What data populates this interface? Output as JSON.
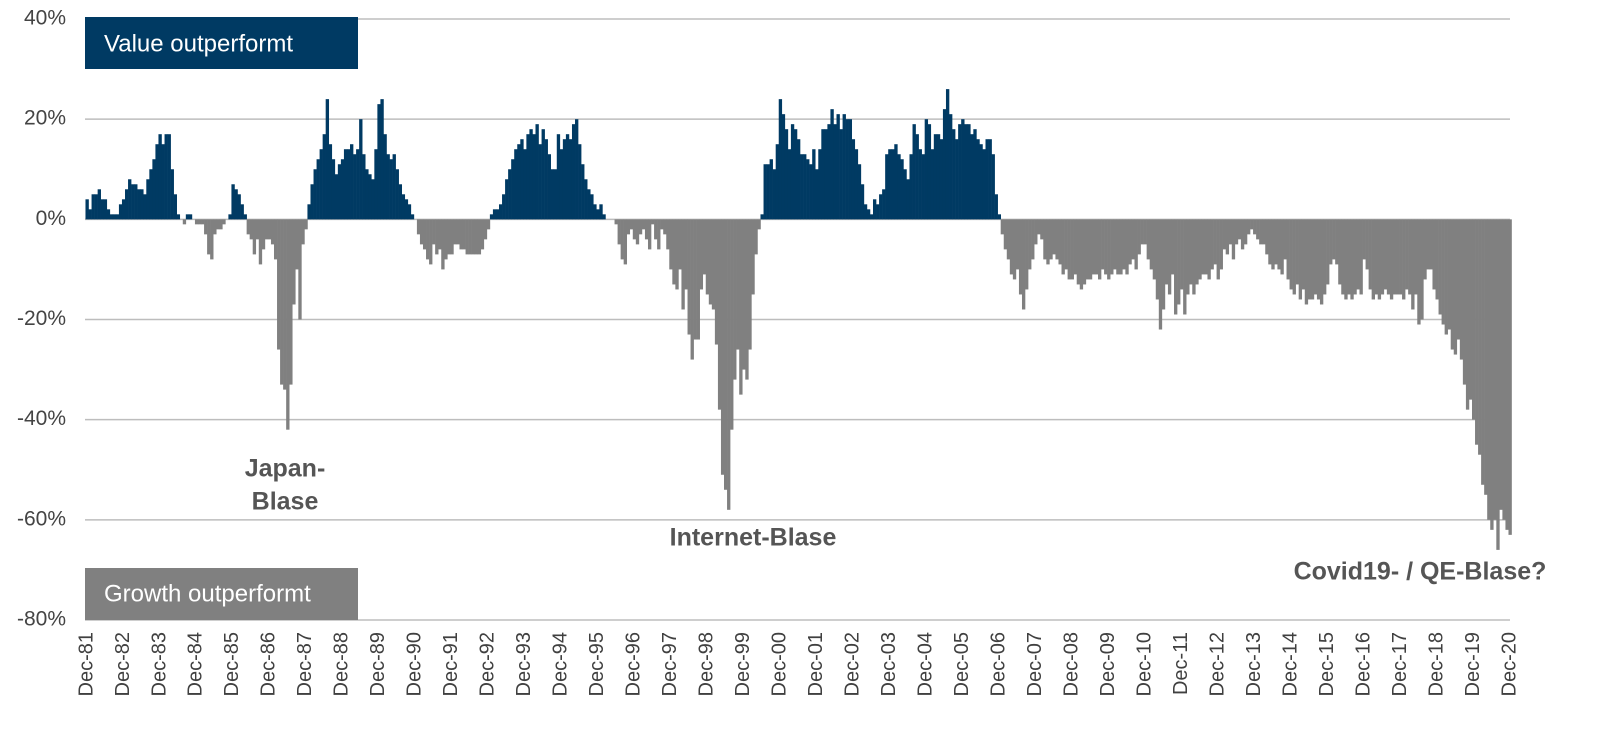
{
  "chart_data": {
    "type": "bar",
    "categories": [
      "Dec-81",
      null,
      null,
      null,
      null,
      null,
      null,
      null,
      null,
      null,
      null,
      null,
      "Dec-82",
      null,
      null,
      null,
      null,
      null,
      null,
      null,
      null,
      null,
      null,
      null,
      "Dec-83",
      null,
      null,
      null,
      null,
      null,
      null,
      null,
      null,
      null,
      null,
      null,
      "Dec-84",
      null,
      null,
      null,
      null,
      null,
      null,
      null,
      null,
      null,
      null,
      null,
      "Dec-85",
      null,
      null,
      null,
      null,
      null,
      null,
      null,
      null,
      null,
      null,
      null,
      "Dec-86",
      null,
      null,
      null,
      null,
      null,
      null,
      null,
      null,
      null,
      null,
      null,
      "Dec-87",
      null,
      null,
      null,
      null,
      null,
      null,
      null,
      null,
      null,
      null,
      null,
      "Dec-88",
      null,
      null,
      null,
      null,
      null,
      null,
      null,
      null,
      null,
      null,
      null,
      "Dec-89",
      null,
      null,
      null,
      null,
      null,
      null,
      null,
      null,
      null,
      null,
      null,
      "Dec-90",
      null,
      null,
      null,
      null,
      null,
      null,
      null,
      null,
      null,
      null,
      null,
      "Dec-91",
      null,
      null,
      null,
      null,
      null,
      null,
      null,
      null,
      null,
      null,
      null,
      "Dec-92",
      null,
      null,
      null,
      null,
      null,
      null,
      null,
      null,
      null,
      null,
      null,
      "Dec-93",
      null,
      null,
      null,
      null,
      null,
      null,
      null,
      null,
      null,
      null,
      null,
      "Dec-94",
      null,
      null,
      null,
      null,
      null,
      null,
      null,
      null,
      null,
      null,
      null,
      "Dec-95",
      null,
      null,
      null,
      null,
      null,
      null,
      null,
      null,
      null,
      null,
      null,
      "Dec-96",
      null,
      null,
      null,
      null,
      null,
      null,
      null,
      null,
      null,
      null,
      null,
      "Dec-97",
      null,
      null,
      null,
      null,
      null,
      null,
      null,
      null,
      null,
      null,
      null,
      "Dec-98",
      null,
      null,
      null,
      null,
      null,
      null,
      null,
      null,
      null,
      null,
      null,
      "Dec-99",
      null,
      null,
      null,
      null,
      null,
      null,
      null,
      null,
      null,
      null,
      null,
      "Dec-00",
      null,
      null,
      null,
      null,
      null,
      null,
      null,
      null,
      null,
      null,
      null,
      "Dec-01",
      null,
      null,
      null,
      null,
      null,
      null,
      null,
      null,
      null,
      null,
      null,
      "Dec-02",
      null,
      null,
      null,
      null,
      null,
      null,
      null,
      null,
      null,
      null,
      null,
      "Dec-03",
      null,
      null,
      null,
      null,
      null,
      null,
      null,
      null,
      null,
      null,
      null,
      "Dec-04",
      null,
      null,
      null,
      null,
      null,
      null,
      null,
      null,
      null,
      null,
      null,
      "Dec-05",
      null,
      null,
      null,
      null,
      null,
      null,
      null,
      null,
      null,
      null,
      null,
      "Dec-06",
      null,
      null,
      null,
      null,
      null,
      null,
      null,
      null,
      null,
      null,
      null,
      "Dec-07",
      null,
      null,
      null,
      null,
      null,
      null,
      null,
      null,
      null,
      null,
      null,
      "Dec-08",
      null,
      null,
      null,
      null,
      null,
      null,
      null,
      null,
      null,
      null,
      null,
      "Dec-09",
      null,
      null,
      null,
      null,
      null,
      null,
      null,
      null,
      null,
      null,
      null,
      "Dec-10",
      null,
      null,
      null,
      null,
      null,
      null,
      null,
      null,
      null,
      null,
      null,
      "Dec-11",
      null,
      null,
      null,
      null,
      null,
      null,
      null,
      null,
      null,
      null,
      null,
      "Dec-12",
      null,
      null,
      null,
      null,
      null,
      null,
      null,
      null,
      null,
      null,
      null,
      "Dec-13",
      null,
      null,
      null,
      null,
      null,
      null,
      null,
      null,
      null,
      null,
      null,
      "Dec-14",
      null,
      null,
      null,
      null,
      null,
      null,
      null,
      null,
      null,
      null,
      null,
      "Dec-15",
      null,
      null,
      null,
      null,
      null,
      null,
      null,
      null,
      null,
      null,
      null,
      "Dec-16",
      null,
      null,
      null,
      null,
      null,
      null,
      null,
      null,
      null,
      null,
      null,
      "Dec-17",
      null,
      null,
      null,
      null,
      null,
      null,
      null,
      null,
      null,
      null,
      null,
      "Dec-18",
      null,
      null,
      null,
      null,
      null,
      null,
      null,
      null,
      null,
      null,
      null,
      "Dec-19",
      null,
      null,
      null,
      null,
      null,
      null,
      null,
      null,
      null,
      null,
      null,
      "Dec-20"
    ],
    "values": [
      4,
      2,
      5,
      5,
      6,
      4,
      4,
      2,
      1,
      1,
      1,
      3,
      4,
      6,
      8,
      7,
      7,
      6,
      6,
      5,
      8,
      10,
      12,
      15,
      17,
      15,
      17,
      17,
      10,
      5,
      1,
      0,
      -1,
      1,
      1,
      0,
      -1,
      -1,
      -1,
      -3,
      -7,
      -8,
      -3,
      -2,
      -2,
      -1,
      0,
      1,
      7,
      6,
      5,
      3,
      1,
      -3,
      -4,
      -7,
      -4,
      -9,
      -6,
      -4,
      -4,
      -5,
      -8,
      -26,
      -33,
      -34,
      -42,
      -33,
      -17,
      -10,
      -20,
      -5,
      -2,
      3,
      7,
      10,
      12,
      14,
      17,
      24,
      15,
      12,
      9,
      11,
      12,
      14,
      14,
      15,
      13,
      14,
      20,
      13,
      10,
      9,
      8,
      14,
      23,
      24,
      17,
      13,
      12,
      13,
      10,
      7,
      5,
      4,
      3,
      1,
      0,
      -3,
      -5,
      -6,
      -8,
      -9,
      -5,
      -7,
      -6,
      -10,
      -8,
      -7,
      -7,
      -5,
      -5,
      -6,
      -6,
      -7,
      -7,
      -7,
      -7,
      -7,
      -6,
      -4,
      -2,
      1,
      2,
      2,
      3,
      5,
      8,
      10,
      12,
      14,
      15,
      16,
      14,
      17,
      18,
      17,
      19,
      15,
      18,
      16,
      13,
      10,
      10,
      17,
      14,
      16,
      17,
      16,
      19,
      20,
      15,
      11,
      8,
      6,
      5,
      3,
      2,
      3,
      1,
      0,
      0,
      0,
      -1,
      -5,
      -8,
      -9,
      -3,
      -2,
      -4,
      -5,
      -3,
      -2,
      -4,
      -6,
      -1,
      -4,
      -6,
      -2,
      -3,
      -6,
      -10,
      -13,
      -14,
      -10,
      -18,
      -14,
      -23,
      -28,
      -24,
      -24,
      -14,
      -11,
      -15,
      -17,
      -18,
      -25,
      -38,
      -51,
      -54,
      -58,
      -42,
      -32,
      -26,
      -35,
      -30,
      -32,
      -26,
      -15,
      -7,
      -2,
      1,
      11,
      11,
      12,
      10,
      15,
      24,
      21,
      18,
      14,
      19,
      18,
      16,
      13,
      13,
      12,
      11,
      14,
      10,
      14,
      18,
      18,
      19,
      22,
      19,
      21,
      18,
      21,
      20,
      20,
      16,
      14,
      11,
      7,
      3,
      2,
      1,
      4,
      3,
      5,
      6,
      13,
      14,
      14,
      15,
      13,
      12,
      10,
      8,
      13,
      19,
      17,
      14,
      13,
      20,
      19,
      14,
      17,
      17,
      16,
      22,
      26,
      21,
      18,
      16,
      19,
      20,
      19,
      19,
      17,
      18,
      16,
      15,
      14,
      16,
      16,
      13,
      5,
      1,
      -3,
      -6,
      -8,
      -11,
      -12,
      -10,
      -15,
      -18,
      -14,
      -10,
      -8,
      -5,
      -3,
      -4,
      -8,
      -9,
      -8,
      -7,
      -8,
      -9,
      -11,
      -10,
      -12,
      -12,
      -11,
      -13,
      -14,
      -13,
      -12,
      -12,
      -11,
      -11,
      -12,
      -10,
      -11,
      -12,
      -11,
      -10,
      -11,
      -11,
      -10,
      -11,
      -9,
      -8,
      -10,
      -7,
      -5,
      -5,
      -8,
      -10,
      -12,
      -16,
      -22,
      -18,
      -13,
      -15,
      -11,
      -19,
      -17,
      -14,
      -19,
      -15,
      -13,
      -15,
      -13,
      -12,
      -11,
      -11,
      -12,
      -10,
      -9,
      -12,
      -10,
      -6,
      -7,
      -5,
      -8,
      -5,
      -4,
      -6,
      -5,
      -3,
      -2,
      -3,
      -4,
      -5,
      -5,
      -7,
      -9,
      -10,
      -9,
      -10,
      -11,
      -8,
      -12,
      -14,
      -15,
      -13,
      -16,
      -14,
      -17,
      -16,
      -16,
      -15,
      -16,
      -17,
      -15,
      -13,
      -9,
      -8,
      -9,
      -13,
      -15,
      -16,
      -15,
      -16,
      -15,
      -14,
      -15,
      -8,
      -10,
      -14,
      -16,
      -15,
      -16,
      -15,
      -14,
      -15,
      -16,
      -15,
      -15,
      -15,
      -16,
      -14,
      -15,
      -18,
      -15,
      -21,
      -20,
      -12,
      -10,
      -10,
      -14,
      -16,
      -19,
      -21,
      -23,
      -22,
      -26,
      -27,
      -24,
      -28,
      -33,
      -38,
      -36,
      -40,
      -45,
      -47,
      -53,
      -55,
      -60,
      -62,
      -60,
      -66,
      -58,
      -60,
      -62,
      -63
    ],
    "positive_color": "#003a63",
    "negative_color": "#808080",
    "ylim": [
      -80,
      40
    ],
    "yticks": [
      {
        "value": -80,
        "label": "-80%"
      },
      {
        "value": -60,
        "label": "-60%"
      },
      {
        "value": -40,
        "label": "-40%"
      },
      {
        "value": -20,
        "label": "-20%"
      },
      {
        "value": 0,
        "label": "0%"
      },
      {
        "value": 20,
        "label": "20%"
      },
      {
        "value": 40,
        "label": "40%"
      }
    ],
    "grid": true,
    "legend": {
      "positive": "Value outperformt",
      "negative": "Growth outperformt"
    },
    "annotations": [
      {
        "lines": [
          "Japan-",
          "Blase"
        ]
      },
      {
        "lines": [
          "Internet-Blase"
        ]
      },
      {
        "lines": [
          "Covid19- / QE-Blase?"
        ]
      }
    ]
  }
}
